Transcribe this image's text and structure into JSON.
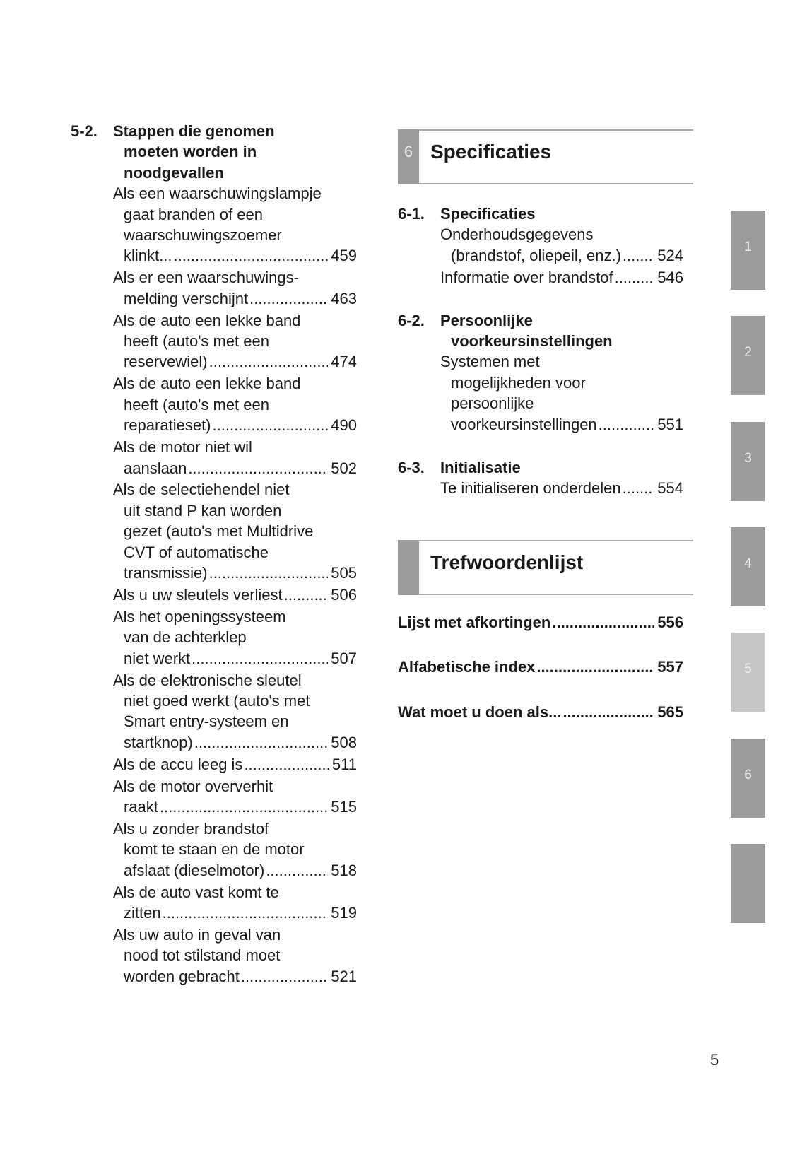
{
  "left_column": {
    "section": {
      "number": "5-2.",
      "title_lines": [
        "Stappen die genomen",
        "moeten worden in",
        "noodgevallen"
      ]
    },
    "entries": [
      {
        "lines": [
          "Als een waarschuwingslampje",
          "gaat branden of een",
          "waarschuwingszoemer",
          "klinkt..."
        ],
        "page": "459"
      },
      {
        "lines": [
          "Als er een waarschuwings-",
          "melding verschijnt"
        ],
        "page": "463"
      },
      {
        "lines": [
          "Als de auto een lekke band",
          "heeft (auto's met een",
          "reservewiel)"
        ],
        "page": "474"
      },
      {
        "lines": [
          "Als de auto een lekke band",
          "heeft (auto's met een",
          "reparatieset)"
        ],
        "page": "490"
      },
      {
        "lines": [
          "Als de motor niet wil",
          "aanslaan"
        ],
        "page": "502"
      },
      {
        "lines": [
          "Als de selectiehendel niet",
          "uit stand P kan worden",
          "gezet (auto's met Multidrive",
          "CVT of automatische",
          "transmissie)"
        ],
        "page": "505"
      },
      {
        "lines": [
          "Als u uw sleutels verliest"
        ],
        "page": "506"
      },
      {
        "lines": [
          "Als het openingssysteem",
          "van de achterklep",
          "niet werkt"
        ],
        "page": "507"
      },
      {
        "lines": [
          "Als de elektronische sleutel",
          "niet goed werkt (auto's met",
          "Smart entry-systeem en",
          "startknop)"
        ],
        "page": "508"
      },
      {
        "lines": [
          "Als de accu leeg is"
        ],
        "page": "511"
      },
      {
        "lines": [
          "Als de motor oververhit",
          "raakt"
        ],
        "page": "515"
      },
      {
        "lines": [
          "Als u zonder brandstof",
          "komt te staan en de motor",
          "afslaat (dieselmotor)"
        ],
        "page": "518"
      },
      {
        "lines": [
          "Als de auto vast komt te",
          "zitten"
        ],
        "page": "519"
      },
      {
        "lines": [
          "Als uw auto in geval van",
          "nood tot stilstand moet",
          "worden gebracht"
        ],
        "page": "521"
      }
    ]
  },
  "chapter6": {
    "number": "6",
    "title": "Specificaties"
  },
  "right_sections": [
    {
      "number": "6-1.",
      "title_lines": [
        "Specificaties"
      ],
      "entries": [
        {
          "lines": [
            "Onderhoudsgegevens",
            "(brandstof, oliepeil, enz.)"
          ],
          "page": "524"
        },
        {
          "lines": [
            "Informatie over brandstof"
          ],
          "page": "546"
        }
      ]
    },
    {
      "number": "6-2.",
      "title_lines": [
        "Persoonlijke",
        "voorkeursinstellingen"
      ],
      "entries": [
        {
          "lines": [
            "Systemen met",
            "mogelijkheden voor",
            "persoonlijke",
            "voorkeursinstellingen"
          ],
          "page": "551"
        }
      ]
    },
    {
      "number": "6-3.",
      "title_lines": [
        "Initialisatie"
      ],
      "entries": [
        {
          "lines": [
            "Te initialiseren onderdelen"
          ],
          "page": "554"
        }
      ]
    }
  ],
  "index_header": {
    "title": "Trefwoordenlijst"
  },
  "index_entries": [
    {
      "label": "Lijst met afkortingen",
      "page": "556"
    },
    {
      "label": "Alfabetische index",
      "page": "557"
    },
    {
      "label": "Wat moet u doen als...",
      "page": "565"
    }
  ],
  "side_tabs": [
    {
      "label": "1",
      "color": "#9b9b9b"
    },
    {
      "label": "2",
      "color": "#9b9b9b"
    },
    {
      "label": "3",
      "color": "#9b9b9b"
    },
    {
      "label": "4",
      "color": "#9b9b9b"
    },
    {
      "label": "5",
      "color": "#c6c6c6"
    },
    {
      "label": "6",
      "color": "#9b9b9b"
    },
    {
      "label": "",
      "color": "#9b9b9b"
    }
  ],
  "page_number": "5"
}
